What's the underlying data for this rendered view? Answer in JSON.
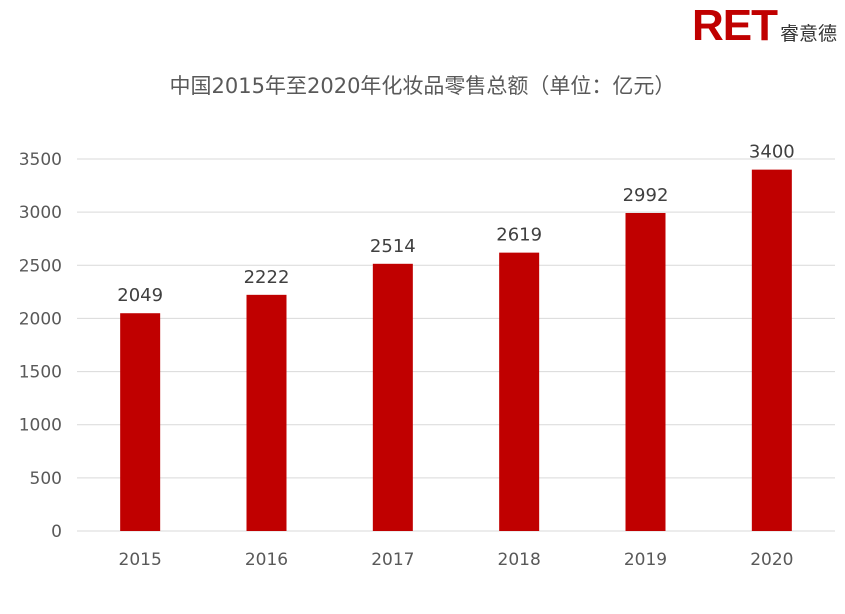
{
  "logo": {
    "mark": "RET",
    "name": "睿意德",
    "brand_color": "#c00000"
  },
  "chart_data": {
    "type": "bar",
    "title": "中国2015年至2020年化妆品零售总额（单位：亿元）",
    "categories": [
      "2015",
      "2016",
      "2017",
      "2018",
      "2019",
      "2020"
    ],
    "values": [
      2049,
      2222,
      2514,
      2619,
      2992,
      3400
    ],
    "data_labels": [
      "2049",
      "2222",
      "2514",
      "2619",
      "2992",
      "3400"
    ],
    "yticks": [
      0,
      500,
      1000,
      1500,
      2000,
      2500,
      3000,
      3500
    ],
    "ylim": [
      0,
      3500
    ],
    "grid": true,
    "legend": "none",
    "bar_color": "#c00000",
    "grid_color": "#d9d9d9"
  }
}
